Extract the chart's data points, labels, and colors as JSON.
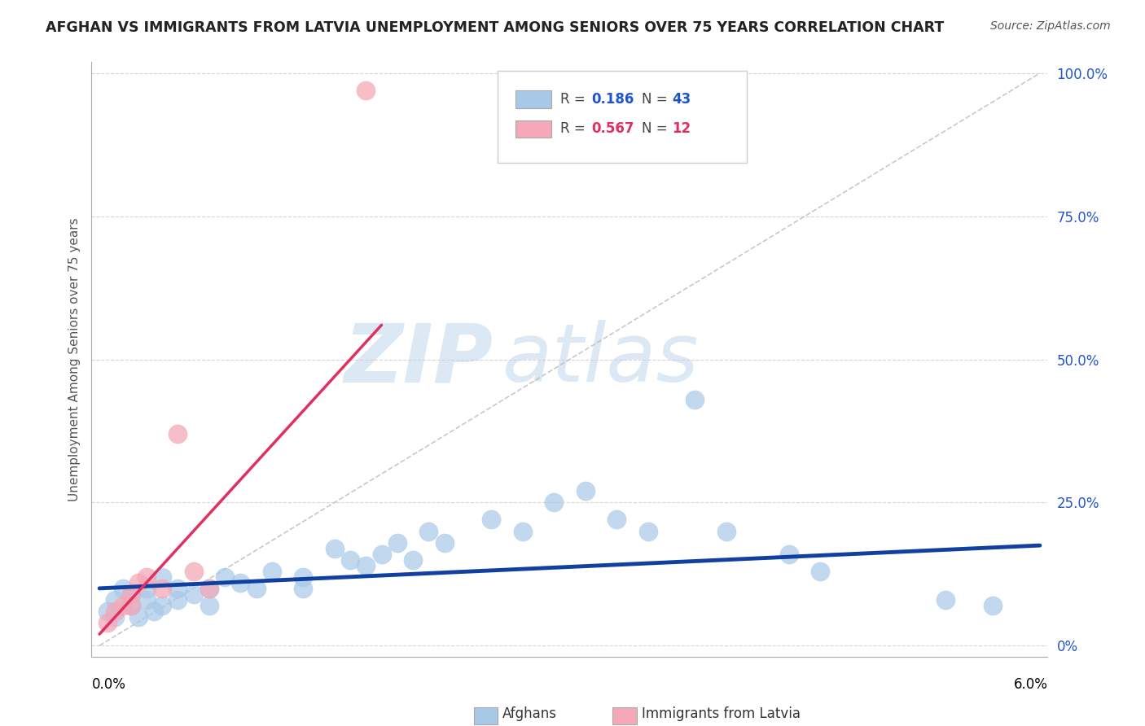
{
  "title": "AFGHAN VS IMMIGRANTS FROM LATVIA UNEMPLOYMENT AMONG SENIORS OVER 75 YEARS CORRELATION CHART",
  "source": "Source: ZipAtlas.com",
  "ylabel": "Unemployment Among Seniors over 75 years",
  "xmin": 0.0,
  "xmax": 0.06,
  "ymin": 0.0,
  "ymax": 1.0,
  "ytick_values": [
    0.0,
    0.25,
    0.5,
    0.75,
    1.0
  ],
  "ytick_labels": [
    "0%",
    "25.0%",
    "50.0%",
    "75.0%",
    "100.0%"
  ],
  "afghans_x": [
    0.0005,
    0.001,
    0.001,
    0.0015,
    0.002,
    0.002,
    0.0025,
    0.003,
    0.003,
    0.0035,
    0.004,
    0.004,
    0.005,
    0.005,
    0.006,
    0.007,
    0.007,
    0.008,
    0.009,
    0.01,
    0.011,
    0.013,
    0.013,
    0.015,
    0.016,
    0.017,
    0.018,
    0.019,
    0.02,
    0.021,
    0.022,
    0.025,
    0.027,
    0.029,
    0.031,
    0.033,
    0.035,
    0.038,
    0.04,
    0.044,
    0.046,
    0.054,
    0.057
  ],
  "afghans_y": [
    0.06,
    0.05,
    0.08,
    0.1,
    0.07,
    0.09,
    0.05,
    0.08,
    0.1,
    0.06,
    0.07,
    0.12,
    0.08,
    0.1,
    0.09,
    0.1,
    0.07,
    0.12,
    0.11,
    0.1,
    0.13,
    0.12,
    0.1,
    0.17,
    0.15,
    0.14,
    0.16,
    0.18,
    0.15,
    0.2,
    0.18,
    0.22,
    0.2,
    0.25,
    0.27,
    0.22,
    0.2,
    0.43,
    0.2,
    0.16,
    0.13,
    0.08,
    0.07
  ],
  "latvia_x": [
    0.0005,
    0.001,
    0.0015,
    0.002,
    0.002,
    0.0025,
    0.003,
    0.004,
    0.005,
    0.006,
    0.007,
    0.017
  ],
  "latvia_y": [
    0.04,
    0.06,
    0.07,
    0.09,
    0.07,
    0.11,
    0.12,
    0.1,
    0.37,
    0.13,
    0.1,
    0.97
  ],
  "blue_color": "#a8c8e8",
  "pink_color": "#f4a8b8",
  "blue_line_color": "#1040a0",
  "pink_line_color": "#e03060",
  "diag_line_color": "#bbbbbb",
  "watermark_zip": "ZIP",
  "watermark_atlas": "atlas",
  "watermark_color": "#dce8f4"
}
